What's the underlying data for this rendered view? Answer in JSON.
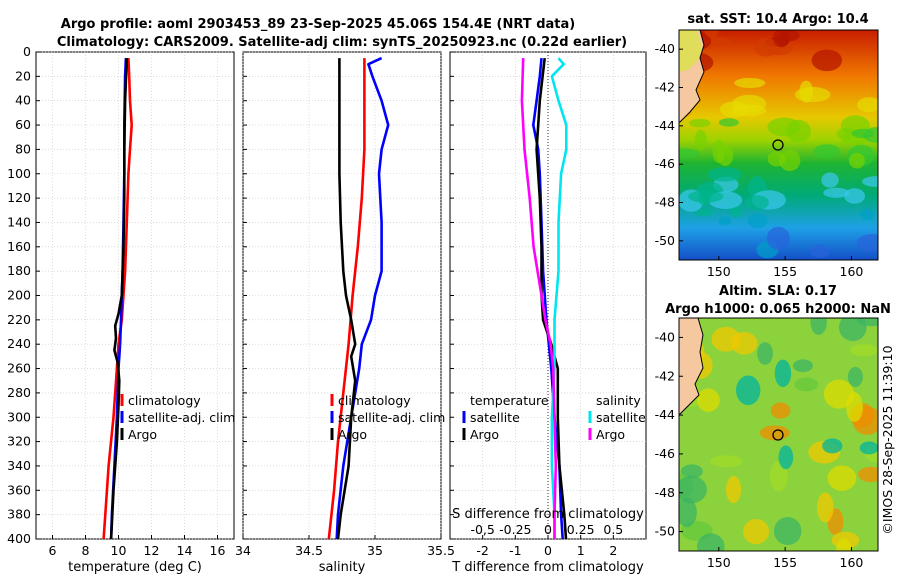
{
  "header": {
    "title_line1": "Argo profile: aoml 2903453_89 23-Sep-2025 45.06S 154.4E (NRT data)",
    "title_line2": "Climatology: CARS2009. Satellite-adj clim: synTS_20250923.nc (0.22d earlier)"
  },
  "credit": "©IMOS 28-Sep-2025 11:39:10",
  "colors": {
    "climatology": "#ff0000",
    "satellite": "#0000ff",
    "argo": "#000000",
    "sat_diff_s": "#00e5ee",
    "clim_diff_s": "#ff00ff",
    "land": "#f6c8a0"
  },
  "chart_data": [
    {
      "type": "line",
      "id": "temperature",
      "xlabel": "temperature (deg C)",
      "ylabel": "",
      "xlim": [
        5,
        17
      ],
      "ylim": [
        400,
        0
      ],
      "xticks": [
        6,
        8,
        10,
        12,
        14,
        16
      ],
      "yticks": [
        0,
        20,
        40,
        60,
        80,
        100,
        120,
        140,
        160,
        180,
        200,
        220,
        240,
        260,
        280,
        300,
        320,
        340,
        360,
        380,
        400
      ],
      "legend": [
        "climatology",
        "satellite-adj. clim",
        "Argo"
      ],
      "series": [
        {
          "name": "climatology",
          "depth": [
            5,
            20,
            40,
            60,
            80,
            100,
            140,
            180,
            220,
            240,
            260,
            300,
            340,
            380,
            400
          ],
          "values": [
            10.6,
            10.65,
            10.7,
            10.8,
            10.7,
            10.6,
            10.5,
            10.4,
            10.2,
            10.0,
            9.9,
            9.7,
            9.4,
            9.2,
            9.1
          ]
        },
        {
          "name": "satellite-adj. clim",
          "depth": [
            5,
            20,
            60,
            100,
            140,
            180,
            220,
            240,
            260,
            300,
            340,
            380,
            400
          ],
          "values": [
            10.45,
            10.4,
            10.35,
            10.35,
            10.3,
            10.25,
            10.15,
            10.1,
            10.0,
            9.9,
            9.75,
            9.6,
            9.55
          ]
        },
        {
          "name": "Argo",
          "depth": [
            5,
            40,
            80,
            120,
            160,
            200,
            215,
            225,
            235,
            245,
            255,
            270,
            290,
            320,
            360,
            400
          ],
          "values": [
            10.5,
            10.4,
            10.35,
            10.35,
            10.3,
            10.2,
            10.0,
            9.8,
            9.85,
            9.75,
            9.95,
            10.05,
            10.0,
            9.9,
            9.7,
            9.55
          ]
        }
      ]
    },
    {
      "type": "line",
      "id": "salinity",
      "xlabel": "salinity",
      "ylabel": "",
      "xlim": [
        34,
        35.5
      ],
      "ylim": [
        400,
        0
      ],
      "xticks": [
        34,
        34.5,
        35,
        35.5
      ],
      "xticklabels": [
        "34",
        "34.5",
        "35",
        "35.5"
      ],
      "legend": [
        "climatology",
        "satellite-adj. clim",
        "Argo"
      ],
      "series": [
        {
          "name": "climatology",
          "depth": [
            5,
            40,
            80,
            120,
            160,
            200,
            240,
            280,
            320,
            360,
            400
          ],
          "values": [
            34.92,
            34.92,
            34.92,
            34.9,
            34.87,
            34.83,
            34.8,
            34.76,
            34.72,
            34.69,
            34.65
          ],
          "note": ""
        },
        {
          "name": "satellite-adj. clim",
          "depth": [
            5,
            10,
            20,
            40,
            60,
            80,
            100,
            140,
            180,
            200,
            220,
            240,
            260,
            300,
            340,
            380,
            400
          ],
          "values": [
            35.05,
            34.95,
            34.98,
            35.05,
            35.1,
            35.05,
            35.03,
            35.05,
            35.05,
            35.0,
            34.97,
            34.9,
            34.88,
            34.82,
            34.76,
            34.72,
            34.71
          ],
          "note": ""
        },
        {
          "name": "Argo",
          "depth": [
            5,
            60,
            100,
            140,
            180,
            200,
            220,
            240,
            250,
            270,
            300,
            340,
            380,
            400
          ],
          "values": [
            34.73,
            34.73,
            34.73,
            34.74,
            34.76,
            34.78,
            34.82,
            34.85,
            34.82,
            34.85,
            34.82,
            34.8,
            34.74,
            34.72
          ],
          "note": ""
        }
      ]
    },
    {
      "type": "line",
      "id": "differences",
      "xlabel": "T difference from climatology",
      "ylabel": "",
      "top_label": "S difference from climatology",
      "xlim": [
        -3,
        3
      ],
      "ylim": [
        400,
        0
      ],
      "xticks": [
        -2,
        -1,
        0,
        1,
        2
      ],
      "top_ticks": [
        -0.5,
        -0.25,
        0,
        0.25,
        0.5
      ],
      "top_ticklabels": [
        "-0,5",
        "-0.25",
        "0",
        "0.25",
        "0.5"
      ],
      "legend_t": [
        "temperature",
        "satellite",
        "Argo"
      ],
      "legend_s": [
        "salinity",
        "satellite",
        "Argo"
      ],
      "series": [
        {
          "name": "T satellite",
          "depth": [
            5,
            20,
            40,
            60,
            80,
            100,
            140,
            180,
            220,
            260,
            300,
            340,
            380,
            400
          ],
          "values": [
            -0.2,
            -0.25,
            -0.35,
            -0.45,
            -0.3,
            -0.25,
            -0.2,
            -0.15,
            -0.05,
            0.1,
            0.2,
            0.35,
            0.4,
            0.45
          ]
        },
        {
          "name": "T Argo",
          "depth": [
            5,
            40,
            80,
            120,
            160,
            200,
            220,
            240,
            260,
            300,
            340,
            380,
            400
          ],
          "values": [
            -0.1,
            -0.25,
            -0.35,
            -0.25,
            -0.2,
            -0.2,
            -0.15,
            0.1,
            0.3,
            0.3,
            0.35,
            0.5,
            0.55
          ]
        },
        {
          "name": "S satellite",
          "depth": [
            5,
            10,
            20,
            40,
            60,
            80,
            100,
            140,
            180,
            220,
            260,
            300,
            340,
            380,
            400
          ],
          "values": [
            0.08,
            0.12,
            0.03,
            0.08,
            0.14,
            0.14,
            0.1,
            0.08,
            0.08,
            0.05,
            0.05,
            0.03,
            0.03,
            0.05,
            0.05
          ]
        },
        {
          "name": "S Argo",
          "depth": [
            5,
            40,
            80,
            120,
            160,
            200,
            220,
            240,
            260,
            300,
            340,
            380,
            400
          ],
          "values": [
            -0.19,
            -0.2,
            -0.18,
            -0.14,
            -0.11,
            -0.05,
            -0.02,
            0.02,
            0.04,
            0.05,
            0.06,
            0.05,
            0.05
          ]
        }
      ]
    },
    {
      "type": "heatmap",
      "id": "sst_map",
      "title": "sat. SST: 10.4 Argo: 10.4",
      "xlim": [
        147,
        162
      ],
      "ylim": [
        -51,
        -39
      ],
      "xticks": [
        150,
        155,
        160
      ],
      "yticks": [
        -40,
        -42,
        -44,
        -46,
        -48,
        -50
      ],
      "marker": {
        "lon": 154.4,
        "lat": -45.06
      }
    },
    {
      "type": "heatmap",
      "id": "sla_map",
      "title_line1": "Altim. SLA: 0.17",
      "title_line2": "Argo h1000: 0.065 h2000: NaN",
      "xlim": [
        147,
        162
      ],
      "ylim": [
        -51,
        -39
      ],
      "xticks": [
        150,
        155,
        160
      ],
      "yticks": [
        -40,
        -42,
        -44,
        -46,
        -48,
        -50
      ],
      "marker": {
        "lon": 154.4,
        "lat": -45.06
      }
    }
  ]
}
